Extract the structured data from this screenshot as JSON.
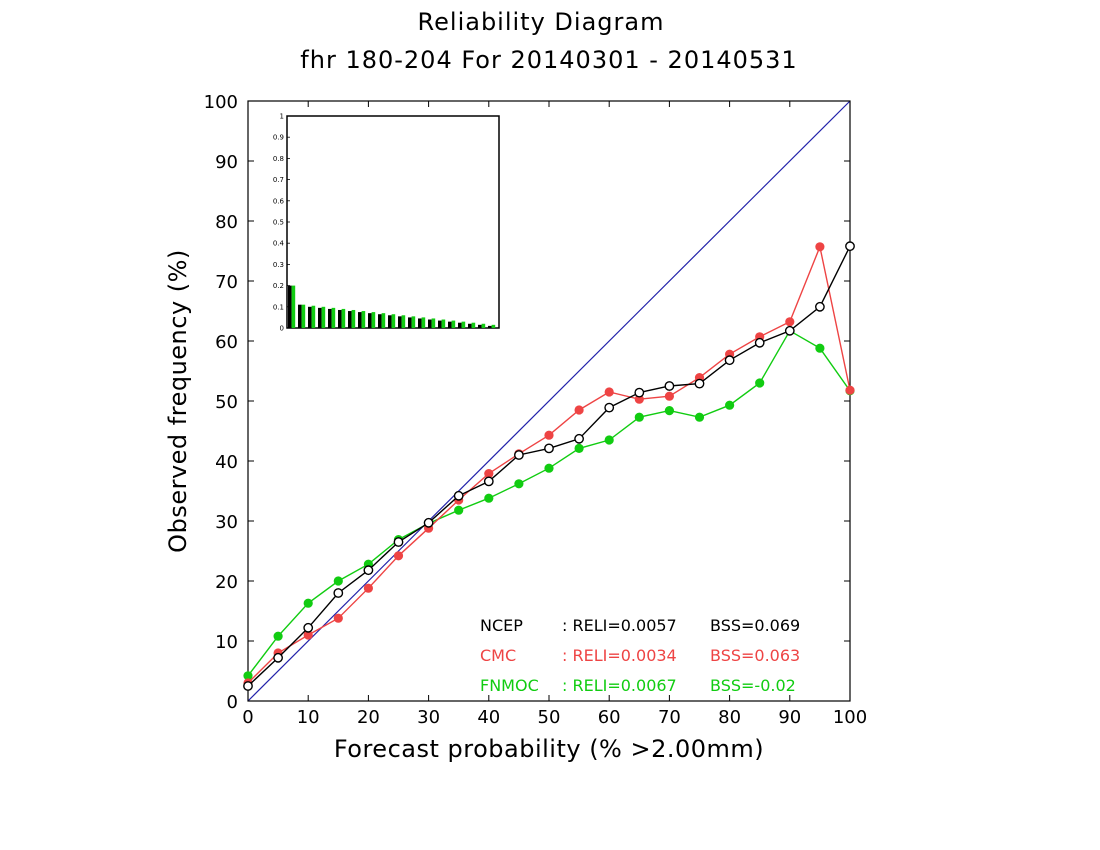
{
  "chart_data": {
    "type": "line",
    "title": "Reliability Diagram",
    "subtitle": "fhr 180-204 For 20140301 - 20140531",
    "xlabel": "Forecast probability (% >2.00mm)",
    "ylabel": "Observed frequency (%)",
    "xlim": [
      0,
      100
    ],
    "ylim": [
      0,
      100
    ],
    "xticks": [
      "0",
      "10",
      "20",
      "30",
      "40",
      "50",
      "60",
      "70",
      "80",
      "90",
      "100"
    ],
    "yticks": [
      "0",
      "10",
      "20",
      "30",
      "40",
      "50",
      "60",
      "70",
      "80",
      "90",
      "100"
    ],
    "diagonal_color": "#2222aa",
    "x": [
      0,
      5,
      10,
      15,
      20,
      25,
      30,
      35,
      40,
      45,
      50,
      55,
      60,
      65,
      70,
      75,
      80,
      85,
      90,
      95,
      100
    ],
    "series": [
      {
        "name": "NCEP",
        "color": "#000000",
        "marker": "open-circle",
        "values": [
          2.5,
          7.2,
          12.2,
          18.0,
          21.8,
          26.5,
          29.7,
          34.2,
          36.6,
          41.0,
          42.1,
          43.7,
          48.9,
          51.4,
          52.5,
          52.9,
          56.8,
          59.7,
          61.7,
          65.7,
          75.8
        ],
        "reli_label": ": RELI=0.0057",
        "bss_label": "BSS=0.069"
      },
      {
        "name": "CMC",
        "color": "#ee4444",
        "marker": "filled-circle",
        "values": [
          3.0,
          8.0,
          11.0,
          13.8,
          18.8,
          24.2,
          28.8,
          33.5,
          37.9,
          41.2,
          44.3,
          48.5,
          51.5,
          50.3,
          50.8,
          53.9,
          57.8,
          60.7,
          63.2,
          75.7,
          51.8
        ],
        "reli_label": ": RELI=0.0034",
        "bss_label": "BSS=0.063"
      },
      {
        "name": "FNMOC",
        "color": "#11cc11",
        "marker": "filled-circle",
        "values": [
          4.2,
          10.8,
          16.3,
          20.0,
          22.8,
          26.9,
          29.6,
          31.8,
          33.8,
          36.2,
          38.8,
          42.1,
          43.5,
          47.3,
          48.4,
          47.3,
          49.3,
          53.0,
          61.7,
          58.8,
          51.7
        ],
        "reli_label": ": RELI=0.0067",
        "bss_label": "BSS=-0.02"
      }
    ],
    "inset": {
      "type": "bar",
      "ylim": [
        0,
        1
      ],
      "yticks": [
        "0",
        "0.1",
        "0.2",
        "0.3",
        "0.4",
        "0.5",
        "0.6",
        "0.7",
        "0.8",
        "0.9",
        "1"
      ],
      "bars": [
        {
          "black": 0.2,
          "green": 0.2
        },
        {
          "black": 0.11,
          "green": 0.11
        },
        {
          "black": 0.1,
          "green": 0.105
        },
        {
          "black": 0.095,
          "green": 0.1
        },
        {
          "black": 0.09,
          "green": 0.095
        },
        {
          "black": 0.085,
          "green": 0.09
        },
        {
          "black": 0.08,
          "green": 0.085
        },
        {
          "black": 0.075,
          "green": 0.08
        },
        {
          "black": 0.07,
          "green": 0.075
        },
        {
          "black": 0.065,
          "green": 0.07
        },
        {
          "black": 0.06,
          "green": 0.065
        },
        {
          "black": 0.055,
          "green": 0.06
        },
        {
          "black": 0.05,
          "green": 0.055
        },
        {
          "black": 0.045,
          "green": 0.05
        },
        {
          "black": 0.04,
          "green": 0.045
        },
        {
          "black": 0.035,
          "green": 0.04
        },
        {
          "black": 0.03,
          "green": 0.035
        },
        {
          "black": 0.025,
          "green": 0.03
        },
        {
          "black": 0.02,
          "green": 0.025
        },
        {
          "black": 0.015,
          "green": 0.02
        },
        {
          "black": 0.01,
          "green": 0.015
        }
      ]
    }
  }
}
